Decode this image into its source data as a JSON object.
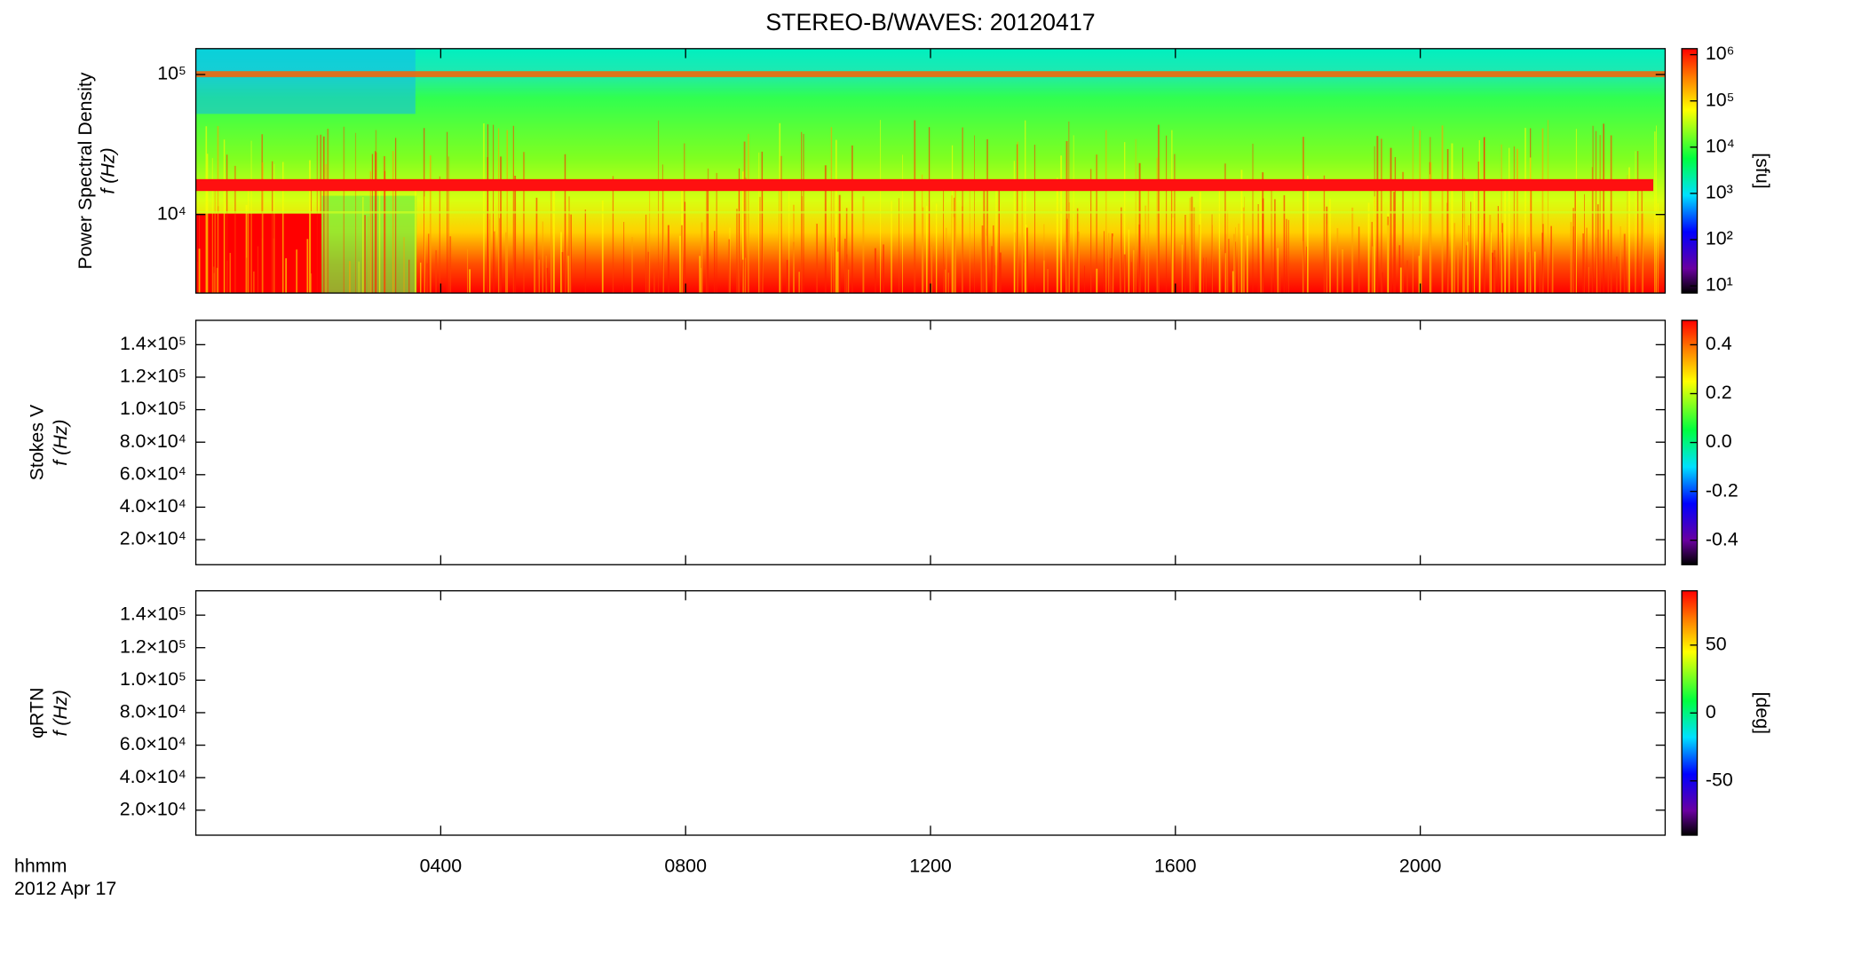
{
  "chart_data": [
    {
      "type": "heatmap",
      "title": "STEREO-B/WAVES: 20120417",
      "ylabel": [
        "Power Spectral Density",
        "f (Hz)"
      ],
      "ylog": true,
      "ylim": [
        2750,
        153000
      ],
      "yticks": [
        {
          "value": 10000,
          "label": "10⁴"
        },
        {
          "value": 100000,
          "label": "10⁵"
        }
      ],
      "clog": true,
      "clim": [
        7,
        1350000
      ],
      "clabel": "[sfu]",
      "cticks": [
        {
          "value": 10,
          "label": "10¹"
        },
        {
          "value": 100,
          "label": "10²"
        },
        {
          "value": 1000,
          "label": "10³"
        },
        {
          "value": 10000,
          "label": "10⁴"
        },
        {
          "value": 100000,
          "label": "10⁵"
        },
        {
          "value": 1000000,
          "label": "10⁶"
        }
      ]
    },
    {
      "type": "heatmap",
      "ylabel": [
        "Stokes V",
        "f (Hz)"
      ],
      "ylog": false,
      "ylim": [
        4600,
        155000
      ],
      "yticks": [
        {
          "value": 20000,
          "label": "2.0×10⁴"
        },
        {
          "value": 40000,
          "label": "4.0×10⁴"
        },
        {
          "value": 60000,
          "label": "6.0×10⁴"
        },
        {
          "value": 80000,
          "label": "8.0×10⁴"
        },
        {
          "value": 100000,
          "label": "1.0×10⁵"
        },
        {
          "value": 120000,
          "label": "1.2×10⁵"
        },
        {
          "value": 140000,
          "label": "1.4×10⁵"
        }
      ],
      "clog": false,
      "clim": [
        -0.5,
        0.5
      ],
      "cticks": [
        {
          "value": -0.4,
          "label": "-0.4"
        },
        {
          "value": -0.2,
          "label": "-0.2"
        },
        {
          "value": 0,
          "label": "0.0"
        },
        {
          "value": 0.2,
          "label": "0.2"
        },
        {
          "value": 0.4,
          "label": "0.4"
        }
      ]
    },
    {
      "type": "heatmap",
      "ylabel": [
        "φRTN",
        "f (Hz)"
      ],
      "ylog": false,
      "ylim": [
        4600,
        155000
      ],
      "yticks": [
        {
          "value": 20000,
          "label": "2.0×10⁴"
        },
        {
          "value": 40000,
          "label": "4.0×10⁴"
        },
        {
          "value": 60000,
          "label": "6.0×10⁴"
        },
        {
          "value": 80000,
          "label": "8.0×10⁴"
        },
        {
          "value": 100000,
          "label": "1.0×10⁵"
        },
        {
          "value": 120000,
          "label": "1.2×10⁵"
        },
        {
          "value": 140000,
          "label": "1.4×10⁵"
        }
      ],
      "clog": false,
      "clim": [
        -90,
        90
      ],
      "clabel": "[deg]",
      "cticks": [
        -50,
        0,
        50
      ],
      "xlabel": [
        "hhmm",
        "2012 Apr 17"
      ],
      "xlim": [
        0,
        24
      ],
      "xticks": [
        {
          "value": 4,
          "label": "0400"
        },
        {
          "value": 8,
          "label": "0800"
        },
        {
          "value": 12,
          "label": "1200"
        },
        {
          "value": 16,
          "label": "1600"
        },
        {
          "value": 20,
          "label": "2000"
        }
      ]
    }
  ]
}
